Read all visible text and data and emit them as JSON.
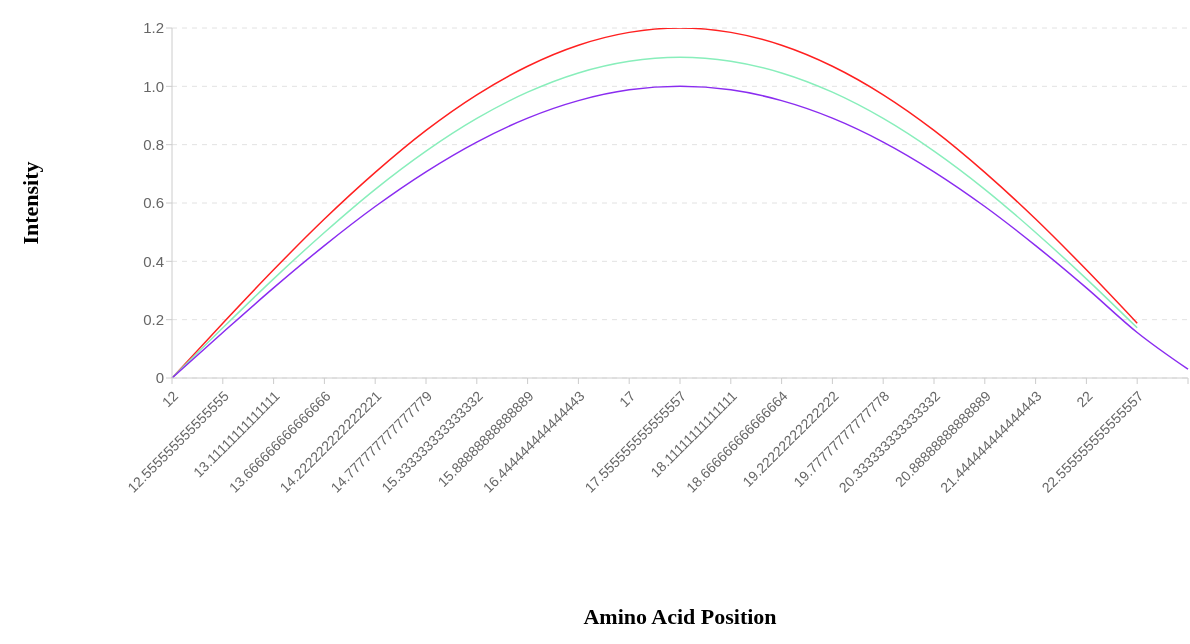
{
  "chart_data": {
    "type": "line",
    "xlabel": "Amino Acid Position",
    "ylabel": "Intensity",
    "categories": [
      "12",
      "12.555555555555555",
      "13.11111111111111",
      "13.666666666666666",
      "14.222222222222221",
      "14.777777777777779",
      "15.333333333333332",
      "15.88888888888889",
      "16.444444444444443",
      "17",
      "17.555555555555557",
      "18.11111111111111",
      "18.666666666666664",
      "19.22222222222222",
      "19.77777777777778",
      "20.333333333333332",
      "20.88888888888889",
      "21.444444444444443",
      "22",
      "22.555555555555557",
      null
    ],
    "series": [
      {
        "color": "#ff2020",
        "values": [
          0,
          0.188,
          0.371,
          0.545,
          0.705,
          0.849,
          0.971,
          1.069,
          1.141,
          1.185,
          1.2,
          1.185,
          1.141,
          1.069,
          0.971,
          0.849,
          0.705,
          0.545,
          0.371,
          0.188,
          null
        ]
      },
      {
        "color": "#88eebb",
        "values": [
          0,
          0.172,
          0.34,
          0.499,
          0.647,
          0.778,
          0.89,
          0.98,
          1.046,
          1.086,
          1.1,
          1.086,
          1.046,
          0.98,
          0.89,
          0.778,
          0.647,
          0.499,
          0.34,
          0.172,
          null
        ]
      },
      {
        "color": "#8a2cf0",
        "values": [
          0,
          0.156,
          0.309,
          0.454,
          0.588,
          0.707,
          0.809,
          0.891,
          0.951,
          0.988,
          1,
          0.988,
          0.951,
          0.891,
          0.809,
          0.707,
          0.588,
          0.454,
          0.309,
          0.156,
          0.03
        ]
      }
    ],
    "ylim": [
      0,
      1.2
    ],
    "yticks": [
      0,
      0.2,
      0.4,
      0.6,
      0.8,
      {
        "value": 1,
        "label": "1.0"
      },
      1.2
    ],
    "grid": "y",
    "legend": false,
    "marker": "none",
    "line_style": "solid"
  }
}
